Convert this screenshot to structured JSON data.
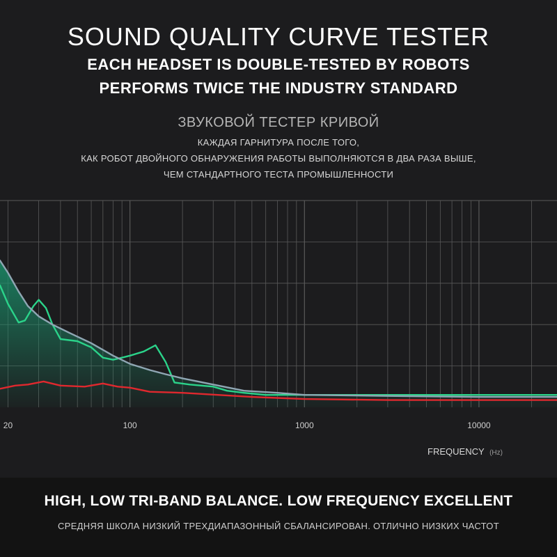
{
  "header": {
    "title": "SOUND QUALITY CURVE TESTER",
    "subtitle_1": "EACH HEADSET IS DOUBLE-TESTED BY ROBOTS",
    "subtitle_2": "PERFORMS TWICE THE INDUSTRY STANDARD",
    "ru_title": "ЗВУКОВОЙ ТЕСТЕР КРИВОЙ",
    "ru_line_1": "КАЖДАЯ ГАРНИТУРА ПОСЛЕ ТОГО,",
    "ru_line_2": "КАК РОБОТ ДВОЙНОГО ОБНАРУЖЕНИЯ РАБОТЫ ВЫПОЛНЯЮТСЯ В ДВА РАЗА ВЫШЕ,",
    "ru_line_3": "ЧЕМ СТАНДАРТНОГО ТЕСТА ПРОМЫШЛЕННОСТИ"
  },
  "footer": {
    "en": "HIGH, LOW TRI-BAND BALANCE. LOW FREQUENCY EXCELLENT",
    "ru": "СРЕДНЯЯ ШКОЛА НИЗКИЙ ТРЕХДИАПАЗОННЫЙ СБАЛАНСИРОВАН. ОТЛИЧНО НИЗКИХ ЧАСТОТ"
  },
  "colors": {
    "background": "#1c1c1e",
    "grid": "#5a5a5a",
    "series_green": "#2bd38a",
    "series_grey": "#8fa6b3",
    "series_red": "#e0282e",
    "fill": "#1b8f6a"
  },
  "chart_data": {
    "type": "line",
    "xscale": "log",
    "xlim": [
      18,
      28000
    ],
    "ylim": [
      0,
      10
    ],
    "grid": true,
    "xlabel": "FREQUENCY",
    "xlabel_unit": "(Hz)",
    "ylabel": "",
    "x_ticks": [
      {
        "value": 20,
        "label": "20"
      },
      {
        "value": 100,
        "label": "100"
      },
      {
        "value": 1000,
        "label": "1000"
      },
      {
        "value": 10000,
        "label": "10000"
      }
    ],
    "series": [
      {
        "color": "green",
        "points": [
          [
            18,
            5.9
          ],
          [
            20,
            5.0
          ],
          [
            23,
            4.1
          ],
          [
            25,
            4.2
          ],
          [
            28,
            4.9
          ],
          [
            30,
            5.2
          ],
          [
            33,
            4.8
          ],
          [
            36,
            4.0
          ],
          [
            40,
            3.3
          ],
          [
            50,
            3.2
          ],
          [
            60,
            2.9
          ],
          [
            70,
            2.4
          ],
          [
            80,
            2.3
          ],
          [
            90,
            2.4
          ],
          [
            100,
            2.5
          ],
          [
            120,
            2.7
          ],
          [
            140,
            3.0
          ],
          [
            160,
            2.2
          ],
          [
            180,
            1.2
          ],
          [
            220,
            1.1
          ],
          [
            300,
            1.0
          ],
          [
            360,
            0.8
          ],
          [
            450,
            0.7
          ],
          [
            600,
            0.6
          ],
          [
            1000,
            0.6
          ],
          [
            3000,
            0.6
          ],
          [
            10000,
            0.6
          ],
          [
            28000,
            0.6
          ]
        ]
      },
      {
        "color": "grey",
        "points": [
          [
            18,
            7.1
          ],
          [
            20,
            6.5
          ],
          [
            23,
            5.6
          ],
          [
            26,
            4.9
          ],
          [
            30,
            4.4
          ],
          [
            36,
            4.0
          ],
          [
            45,
            3.6
          ],
          [
            60,
            3.1
          ],
          [
            80,
            2.5
          ],
          [
            100,
            2.1
          ],
          [
            130,
            1.8
          ],
          [
            160,
            1.6
          ],
          [
            200,
            1.4
          ],
          [
            300,
            1.1
          ],
          [
            450,
            0.8
          ],
          [
            700,
            0.7
          ],
          [
            1000,
            0.6
          ],
          [
            3000,
            0.55
          ],
          [
            10000,
            0.5
          ],
          [
            28000,
            0.5
          ]
        ]
      },
      {
        "color": "red",
        "points": [
          [
            18,
            0.9
          ],
          [
            22,
            1.05
          ],
          [
            26,
            1.1
          ],
          [
            32,
            1.25
          ],
          [
            40,
            1.05
          ],
          [
            55,
            1.0
          ],
          [
            70,
            1.15
          ],
          [
            85,
            1.0
          ],
          [
            100,
            0.95
          ],
          [
            130,
            0.75
          ],
          [
            200,
            0.7
          ],
          [
            500,
            0.5
          ],
          [
            1000,
            0.4
          ],
          [
            3000,
            0.35
          ],
          [
            10000,
            0.35
          ],
          [
            28000,
            0.35
          ]
        ]
      }
    ]
  }
}
